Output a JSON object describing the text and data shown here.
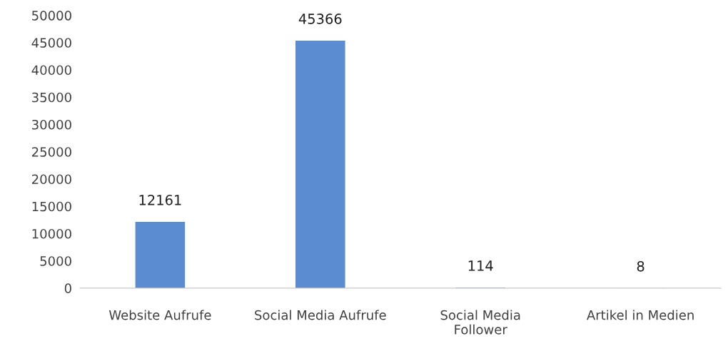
{
  "chart_data": {
    "type": "bar",
    "categories": [
      "Website Aufrufe",
      "Social Media Aufrufe",
      "Social Media\nFollower",
      "Artikel in Medien"
    ],
    "values": [
      12161,
      45366,
      114,
      8
    ],
    "color": "#5b8bd1",
    "ylim": [
      0,
      50000
    ],
    "yticks": [
      0,
      5000,
      10000,
      15000,
      20000,
      25000,
      30000,
      35000,
      40000,
      45000,
      50000
    ],
    "data_labels": true,
    "grid": false,
    "legend": false
  }
}
